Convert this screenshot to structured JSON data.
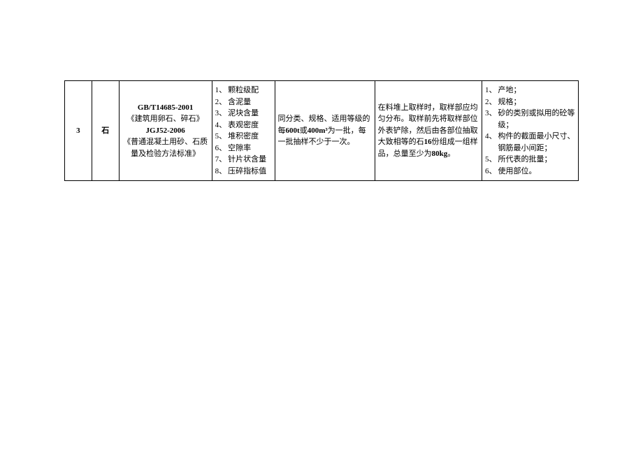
{
  "table": {
    "type": "table",
    "border_color": "#000000",
    "background_color": "#ffffff",
    "font_family": "SimSun",
    "base_font_size": 11,
    "row": {
      "number": "3",
      "material": "石",
      "standard": {
        "code1": "GB/T14685-2001",
        "desc1": "《建筑用卵石、碎石》",
        "code2": "JGJ52-2006",
        "desc2": "《普通混凝土用砂、石质量及检验方法标准》"
      },
      "test_items": [
        "颗粒级配",
        "含泥量",
        "泥块含量",
        "表观密度",
        "堆积密度",
        "空隙率",
        "针片状含量",
        "压碎指标值"
      ],
      "batch_rule_pre": "同分类、规格、适用等级的每",
      "batch_rule_bold1": "600t",
      "batch_rule_mid": "或",
      "batch_rule_bold2": "400m³",
      "batch_rule_post": "为一批，每一批抽样不少于一次。",
      "sampling_pre": "在料堆上取样时，取样部应均匀分布。取样前先将取样部位外表铲除，然后由各部位抽取大致相等的石",
      "sampling_bold1": "16",
      "sampling_mid": "份组成一组样品，总量至少为",
      "sampling_bold2": "80kg",
      "sampling_post": "。",
      "notes": [
        "产地；",
        "规格；",
        "砂的类别或拟用的砼等级；",
        "构件的截面最小尺寸、钢筋最小间距；",
        "所代表的批量；",
        "使用部位。"
      ]
    }
  }
}
